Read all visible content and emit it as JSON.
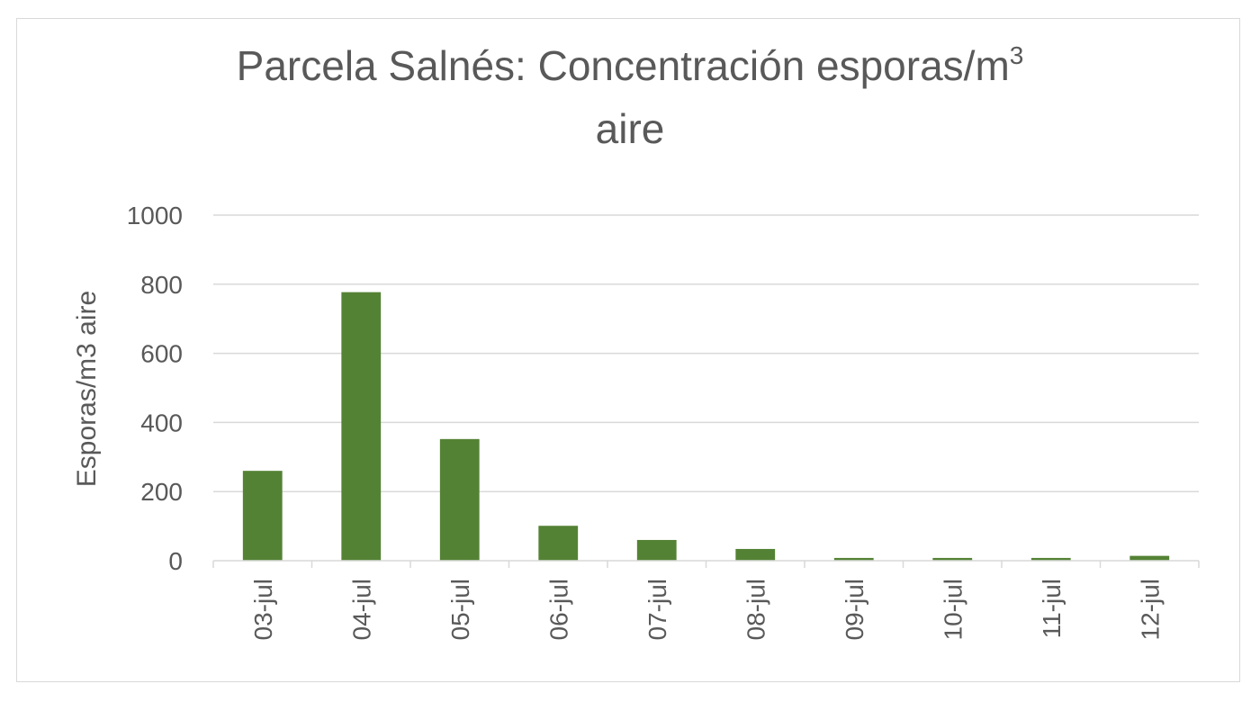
{
  "chart_data": {
    "type": "bar",
    "title_main": "Parcela Salnés: Concentración esporas/m",
    "title_sup": "3",
    "title_line2": "aire",
    "xlabel": "",
    "ylabel": "Esporas/m3 aire",
    "categories": [
      "03-jul",
      "04-jul",
      "05-jul",
      "06-jul",
      "07-jul",
      "08-jul",
      "09-jul",
      "10-jul",
      "11-jul",
      "12-jul"
    ],
    "values": [
      260,
      777,
      352,
      101,
      60,
      34,
      8,
      8,
      8,
      14
    ],
    "ylim": [
      0,
      1000
    ],
    "yticks": [
      "0",
      "200",
      "400",
      "600",
      "800",
      "1000"
    ],
    "grid": true,
    "legend": "none",
    "bar_color": "#548235",
    "grid_color": "#d9d9d9"
  }
}
